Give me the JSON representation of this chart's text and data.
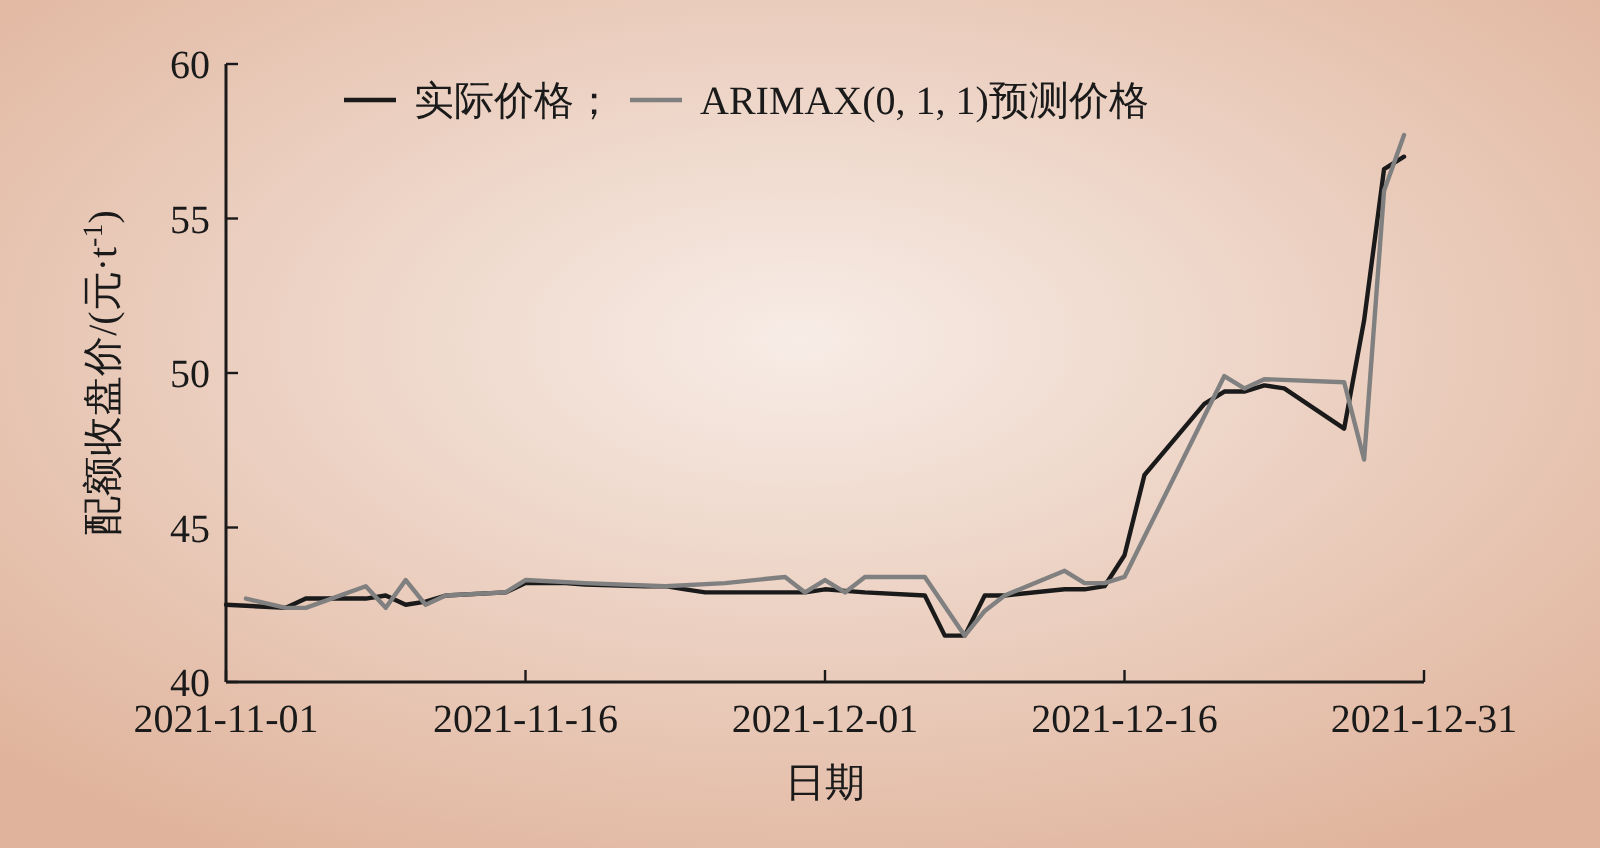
{
  "chart_data": {
    "type": "line",
    "xlabel": "日期",
    "ylabel": "配额收盘价/(元·t$^{-1}$)",
    "xlim": [
      "2021-11-01",
      "2021-12-31"
    ],
    "xticks": [
      "2021-11-01",
      "2021-11-16",
      "2021-12-01",
      "2021-12-16",
      "2021-12-31"
    ],
    "ylim": [
      40,
      60
    ],
    "yticks": [
      40,
      45,
      50,
      55,
      60
    ],
    "grid": false,
    "legend": "top",
    "marker": "none",
    "line_style": "solid",
    "series": [
      {
        "name": "实际价格；",
        "color": "#1a1a1a",
        "x": [
          "2021-11-01",
          "2021-11-04",
          "2021-11-05",
          "2021-11-08",
          "2021-11-09",
          "2021-11-10",
          "2021-11-11",
          "2021-11-12",
          "2021-11-15",
          "2021-11-16",
          "2021-11-17",
          "2021-11-18",
          "2021-11-19",
          "2021-11-22",
          "2021-11-23",
          "2021-11-24",
          "2021-11-25",
          "2021-11-26",
          "2021-11-29",
          "2021-11-30",
          "2021-12-01",
          "2021-12-02",
          "2021-12-03",
          "2021-12-06",
          "2021-12-07",
          "2021-12-08",
          "2021-12-09",
          "2021-12-10",
          "2021-12-13",
          "2021-12-14",
          "2021-12-15",
          "2021-12-16",
          "2021-12-17",
          "2021-12-20",
          "2021-12-21",
          "2021-12-22",
          "2021-12-23",
          "2021-12-24",
          "2021-12-27",
          "2021-12-28",
          "2021-12-29",
          "2021-12-30"
        ],
        "values": [
          42.5,
          42.4,
          42.7,
          42.7,
          42.8,
          42.5,
          42.6,
          42.8,
          42.9,
          43.2,
          43.2,
          43.2,
          43.15,
          43.1,
          43.1,
          43.0,
          42.9,
          42.9,
          42.9,
          42.9,
          43.0,
          42.95,
          42.9,
          42.8,
          41.5,
          41.5,
          42.8,
          42.8,
          43.0,
          43.0,
          43.1,
          44.1,
          46.7,
          49.0,
          49.4,
          49.4,
          49.6,
          49.5,
          48.2,
          51.7,
          56.6,
          57.0
        ]
      },
      {
        "name": "ARIMAX(0, 1, 1)预测价格",
        "color": "#808080",
        "x": [
          "2021-11-02",
          "2021-11-04",
          "2021-11-05",
          "2021-11-08",
          "2021-11-09",
          "2021-11-10",
          "2021-11-11",
          "2021-11-12",
          "2021-11-15",
          "2021-11-16",
          "2021-11-19",
          "2021-11-23",
          "2021-11-26",
          "2021-11-29",
          "2021-11-30",
          "2021-12-01",
          "2021-12-02",
          "2021-12-03",
          "2021-12-06",
          "2021-12-08",
          "2021-12-09",
          "2021-12-10",
          "2021-12-13",
          "2021-12-14",
          "2021-12-15",
          "2021-12-16",
          "2021-12-17",
          "2021-12-21",
          "2021-12-22",
          "2021-12-23",
          "2021-12-27",
          "2021-12-28",
          "2021-12-29",
          "2021-12-30"
        ],
        "values": [
          42.7,
          42.4,
          42.4,
          43.1,
          42.4,
          43.3,
          42.5,
          42.8,
          42.9,
          43.3,
          43.2,
          43.1,
          43.2,
          43.4,
          42.9,
          43.3,
          42.9,
          43.4,
          43.4,
          41.5,
          42.3,
          42.8,
          43.6,
          43.2,
          43.2,
          43.4,
          44.7,
          49.9,
          49.5,
          49.8,
          49.7,
          47.2,
          55.9,
          57.7
        ]
      }
    ]
  }
}
